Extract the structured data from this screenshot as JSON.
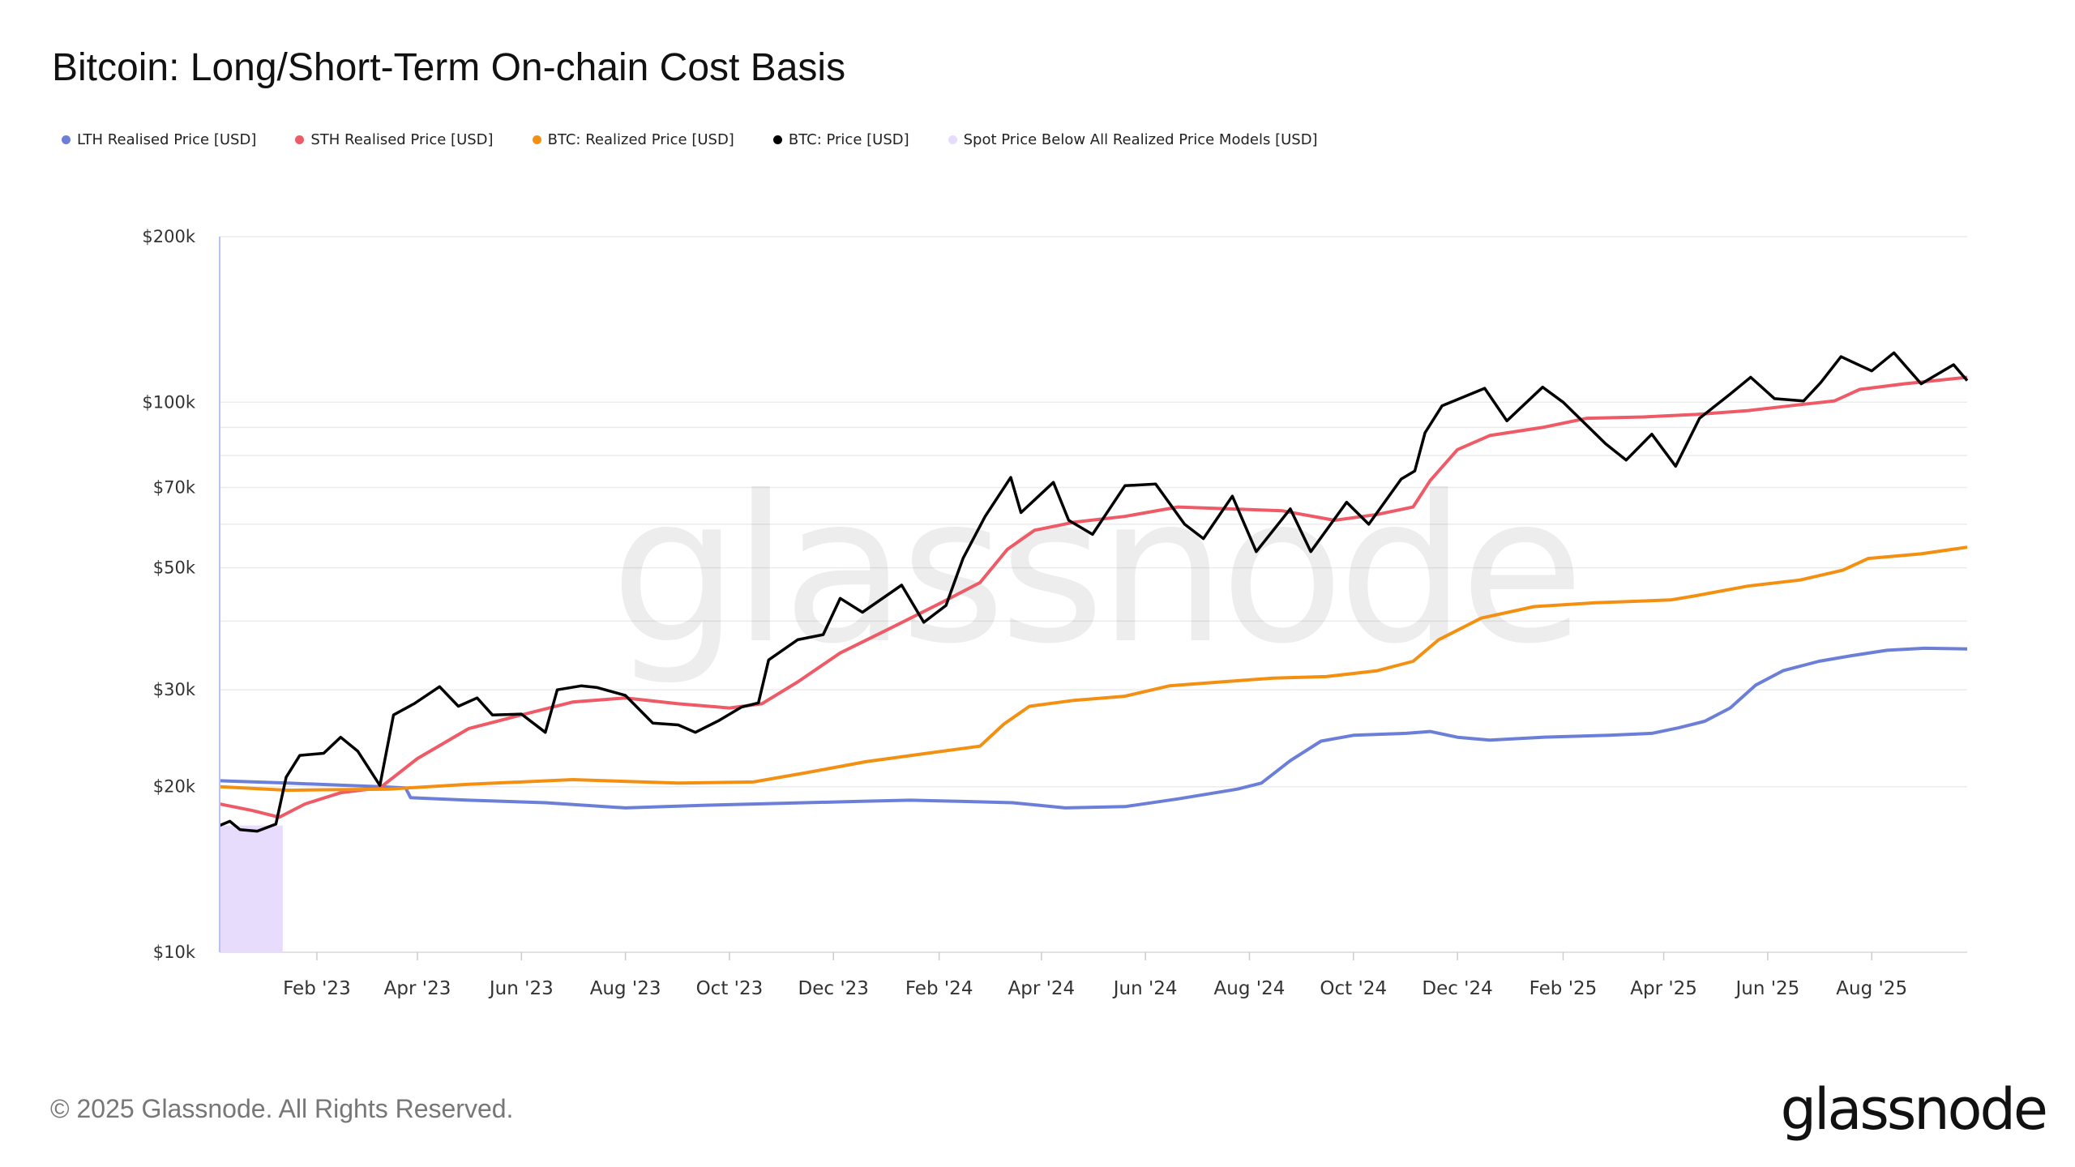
{
  "title": "Bitcoin: Long/Short-Term On-chain Cost Basis",
  "footer": "© 2025 Glassnode. All Rights Reserved.",
  "logo": "glassnode",
  "watermark": "glassnode",
  "legend": [
    {
      "label": "LTH Realised Price [USD]",
      "color": "#6b7fd9"
    },
    {
      "label": "STH Realised Price [USD]",
      "color": "#ee5a66"
    },
    {
      "label": "BTC: Realized Price [USD]",
      "color": "#f49011"
    },
    {
      "label": "BTC: Price [USD]",
      "color": "#000000"
    },
    {
      "label": "Spot Price Below All Realized Price Models [USD]",
      "color": "#e8dcfc"
    }
  ],
  "chart_data": {
    "type": "line",
    "title": "Bitcoin: Long/Short-Term On-chain Cost Basis",
    "y_scale": "log",
    "ylim": [
      10000,
      200000
    ],
    "xlim": [
      "2022-12-06",
      "2025-09-26"
    ],
    "grid": true,
    "legend_position": "top-left",
    "y_ticks": [
      {
        "value": 200000,
        "label": "$200k"
      },
      {
        "value": 100000,
        "label": "$100k"
      },
      {
        "value": 70000,
        "label": "$70k"
      },
      {
        "value": 50000,
        "label": "$50k"
      },
      {
        "value": 30000,
        "label": "$30k"
      },
      {
        "value": 20000,
        "label": "$20k"
      },
      {
        "value": 10000,
        "label": "$10k"
      }
    ],
    "y_minor_grid": [
      90000,
      80000,
      60000,
      40000
    ],
    "x_ticks": [
      {
        "date": "2023-02-01",
        "label": "Feb '23"
      },
      {
        "date": "2023-04-01",
        "label": "Apr '23"
      },
      {
        "date": "2023-06-01",
        "label": "Jun '23"
      },
      {
        "date": "2023-08-01",
        "label": "Aug '23"
      },
      {
        "date": "2023-10-01",
        "label": "Oct '23"
      },
      {
        "date": "2023-12-01",
        "label": "Dec '23"
      },
      {
        "date": "2024-02-01",
        "label": "Feb '24"
      },
      {
        "date": "2024-04-01",
        "label": "Apr '24"
      },
      {
        "date": "2024-06-01",
        "label": "Jun '24"
      },
      {
        "date": "2024-08-01",
        "label": "Aug '24"
      },
      {
        "date": "2024-10-01",
        "label": "Oct '24"
      },
      {
        "date": "2024-12-01",
        "label": "Dec '24"
      },
      {
        "date": "2025-02-01",
        "label": "Feb '25"
      },
      {
        "date": "2025-04-01",
        "label": "Apr '25"
      },
      {
        "date": "2025-06-01",
        "label": "Jun '25"
      },
      {
        "date": "2025-08-01",
        "label": "Aug '25"
      }
    ],
    "shaded_ranges": [
      {
        "series": "Spot Price Below All Realized Price Models [USD]",
        "start": "2022-12-06",
        "end": "2023-01-12",
        "color": "#e8dcfc"
      }
    ],
    "series": [
      {
        "name": "LTH Realised Price [USD]",
        "color": "#6b7fd9",
        "points": [
          [
            "2022-12-06",
            20500
          ],
          [
            "2023-01-15",
            20300
          ],
          [
            "2023-03-10",
            20000
          ],
          [
            "2023-03-25",
            19900
          ],
          [
            "2023-03-28",
            19100
          ],
          [
            "2023-05-01",
            18900
          ],
          [
            "2023-06-15",
            18700
          ],
          [
            "2023-08-01",
            18300
          ],
          [
            "2023-09-15",
            18500
          ],
          [
            "2023-10-15",
            18600
          ],
          [
            "2023-12-15",
            18800
          ],
          [
            "2024-01-15",
            18900
          ],
          [
            "2024-02-15",
            18800
          ],
          [
            "2024-03-15",
            18700
          ],
          [
            "2024-04-15",
            18300
          ],
          [
            "2024-05-20",
            18400
          ],
          [
            "2024-06-20",
            19000
          ],
          [
            "2024-07-25",
            19800
          ],
          [
            "2024-08-08",
            20300
          ],
          [
            "2024-08-25",
            22300
          ],
          [
            "2024-09-12",
            24200
          ],
          [
            "2024-10-01",
            24800
          ],
          [
            "2024-11-01",
            25000
          ],
          [
            "2024-11-15",
            25200
          ],
          [
            "2024-12-01",
            24600
          ],
          [
            "2024-12-20",
            24300
          ],
          [
            "2025-01-20",
            24600
          ],
          [
            "2025-02-28",
            24800
          ],
          [
            "2025-03-25",
            25000
          ],
          [
            "2025-04-10",
            25600
          ],
          [
            "2025-04-25",
            26300
          ],
          [
            "2025-05-10",
            27800
          ],
          [
            "2025-05-25",
            30600
          ],
          [
            "2025-06-10",
            32500
          ],
          [
            "2025-07-01",
            33800
          ],
          [
            "2025-07-20",
            34600
          ],
          [
            "2025-08-10",
            35400
          ],
          [
            "2025-09-01",
            35700
          ],
          [
            "2025-09-26",
            35600
          ]
        ]
      },
      {
        "name": "STH Realised Price [USD]",
        "color": "#ee5a66",
        "points": [
          [
            "2022-12-06",
            18600
          ],
          [
            "2022-12-25",
            18100
          ],
          [
            "2023-01-10",
            17600
          ],
          [
            "2023-01-25",
            18600
          ],
          [
            "2023-02-15",
            19500
          ],
          [
            "2023-03-10",
            19900
          ],
          [
            "2023-04-01",
            22500
          ],
          [
            "2023-05-01",
            25500
          ],
          [
            "2023-06-01",
            27000
          ],
          [
            "2023-07-01",
            28500
          ],
          [
            "2023-08-01",
            29000
          ],
          [
            "2023-09-01",
            28300
          ],
          [
            "2023-10-01",
            27800
          ],
          [
            "2023-10-20",
            28300
          ],
          [
            "2023-11-10",
            31000
          ],
          [
            "2023-12-05",
            35000
          ],
          [
            "2024-01-01",
            38500
          ],
          [
            "2024-02-01",
            43000
          ],
          [
            "2024-02-25",
            47000
          ],
          [
            "2024-03-12",
            54000
          ],
          [
            "2024-03-28",
            58500
          ],
          [
            "2024-04-20",
            60500
          ],
          [
            "2024-05-20",
            62000
          ],
          [
            "2024-06-20",
            64500
          ],
          [
            "2024-07-20",
            64000
          ],
          [
            "2024-08-20",
            63500
          ],
          [
            "2024-09-20",
            61000
          ],
          [
            "2024-10-15",
            62500
          ],
          [
            "2024-11-05",
            64500
          ],
          [
            "2024-11-15",
            72000
          ],
          [
            "2024-12-01",
            82000
          ],
          [
            "2024-12-20",
            87000
          ],
          [
            "2025-01-20",
            90000
          ],
          [
            "2025-02-15",
            93500
          ],
          [
            "2025-03-20",
            94000
          ],
          [
            "2025-04-20",
            95000
          ],
          [
            "2025-05-20",
            96500
          ],
          [
            "2025-06-20",
            99000
          ],
          [
            "2025-07-10",
            100500
          ],
          [
            "2025-07-25",
            105500
          ],
          [
            "2025-08-20",
            108000
          ],
          [
            "2025-09-26",
            111000
          ]
        ]
      },
      {
        "name": "BTC: Realized Price [USD]",
        "color": "#f49011",
        "points": [
          [
            "2022-12-06",
            20000
          ],
          [
            "2023-01-15",
            19700
          ],
          [
            "2023-03-15",
            19800
          ],
          [
            "2023-05-01",
            20200
          ],
          [
            "2023-07-01",
            20600
          ],
          [
            "2023-09-01",
            20300
          ],
          [
            "2023-10-15",
            20400
          ],
          [
            "2023-11-15",
            21200
          ],
          [
            "2023-12-20",
            22200
          ],
          [
            "2024-01-25",
            23000
          ],
          [
            "2024-02-25",
            23700
          ],
          [
            "2024-03-10",
            26000
          ],
          [
            "2024-03-25",
            28000
          ],
          [
            "2024-04-20",
            28700
          ],
          [
            "2024-05-20",
            29200
          ],
          [
            "2024-06-15",
            30500
          ],
          [
            "2024-07-15",
            31000
          ],
          [
            "2024-08-15",
            31500
          ],
          [
            "2024-09-15",
            31700
          ],
          [
            "2024-10-15",
            32500
          ],
          [
            "2024-11-05",
            33800
          ],
          [
            "2024-11-20",
            37000
          ],
          [
            "2024-12-15",
            40500
          ],
          [
            "2025-01-15",
            42500
          ],
          [
            "2025-02-20",
            43200
          ],
          [
            "2025-04-05",
            43700
          ],
          [
            "2025-04-20",
            44500
          ],
          [
            "2025-05-20",
            46300
          ],
          [
            "2025-06-20",
            47500
          ],
          [
            "2025-07-15",
            49500
          ],
          [
            "2025-07-30",
            52000
          ],
          [
            "2025-08-30",
            53000
          ],
          [
            "2025-09-26",
            54500
          ]
        ]
      },
      {
        "name": "BTC: Price [USD]",
        "color": "#000000",
        "points": [
          [
            "2022-12-06",
            17000
          ],
          [
            "2022-12-12",
            17300
          ],
          [
            "2022-12-18",
            16700
          ],
          [
            "2022-12-28",
            16600
          ],
          [
            "2023-01-08",
            17100
          ],
          [
            "2023-01-14",
            20800
          ],
          [
            "2023-01-22",
            22800
          ],
          [
            "2023-02-05",
            23000
          ],
          [
            "2023-02-15",
            24600
          ],
          [
            "2023-02-25",
            23200
          ],
          [
            "2023-03-10",
            20100
          ],
          [
            "2023-03-18",
            27000
          ],
          [
            "2023-03-30",
            28300
          ],
          [
            "2023-04-14",
            30400
          ],
          [
            "2023-04-25",
            28000
          ],
          [
            "2023-05-06",
            29000
          ],
          [
            "2023-05-15",
            27000
          ],
          [
            "2023-06-01",
            27100
          ],
          [
            "2023-06-15",
            25100
          ],
          [
            "2023-06-22",
            30000
          ],
          [
            "2023-07-06",
            30500
          ],
          [
            "2023-07-15",
            30300
          ],
          [
            "2023-08-01",
            29300
          ],
          [
            "2023-08-17",
            26100
          ],
          [
            "2023-09-01",
            25900
          ],
          [
            "2023-09-11",
            25100
          ],
          [
            "2023-09-25",
            26400
          ],
          [
            "2023-10-08",
            27900
          ],
          [
            "2023-10-18",
            28400
          ],
          [
            "2023-10-24",
            34000
          ],
          [
            "2023-11-10",
            37000
          ],
          [
            "2023-11-25",
            37800
          ],
          [
            "2023-12-05",
            44000
          ],
          [
            "2023-12-18",
            41500
          ],
          [
            "2024-01-10",
            46500
          ],
          [
            "2024-01-23",
            39800
          ],
          [
            "2024-02-05",
            42700
          ],
          [
            "2024-02-15",
            52000
          ],
          [
            "2024-02-28",
            62000
          ],
          [
            "2024-03-14",
            73000
          ],
          [
            "2024-03-20",
            63000
          ],
          [
            "2024-04-08",
            71500
          ],
          [
            "2024-04-17",
            61000
          ],
          [
            "2024-05-01",
            57500
          ],
          [
            "2024-05-20",
            70500
          ],
          [
            "2024-06-07",
            71000
          ],
          [
            "2024-06-24",
            60000
          ],
          [
            "2024-07-05",
            56500
          ],
          [
            "2024-07-22",
            67500
          ],
          [
            "2024-08-05",
            53500
          ],
          [
            "2024-08-25",
            64000
          ],
          [
            "2024-09-06",
            53500
          ],
          [
            "2024-09-27",
            65800
          ],
          [
            "2024-10-10",
            60000
          ],
          [
            "2024-10-29",
            72500
          ],
          [
            "2024-11-06",
            75000
          ],
          [
            "2024-11-12",
            88000
          ],
          [
            "2024-11-22",
            98500
          ],
          [
            "2024-12-17",
            106000
          ],
          [
            "2024-12-30",
            92500
          ],
          [
            "2025-01-20",
            106500
          ],
          [
            "2025-02-01",
            100000
          ],
          [
            "2025-02-26",
            84000
          ],
          [
            "2025-03-10",
            78500
          ],
          [
            "2025-03-25",
            87500
          ],
          [
            "2025-04-08",
            76500
          ],
          [
            "2025-04-22",
            93500
          ],
          [
            "2025-05-10",
            103500
          ],
          [
            "2025-05-22",
            111000
          ],
          [
            "2025-06-05",
            101500
          ],
          [
            "2025-06-22",
            100500
          ],
          [
            "2025-07-02",
            108500
          ],
          [
            "2025-07-14",
            121000
          ],
          [
            "2025-08-01",
            114000
          ],
          [
            "2025-08-14",
            123000
          ],
          [
            "2025-08-30",
            108000
          ],
          [
            "2025-09-18",
            117000
          ],
          [
            "2025-09-26",
            109500
          ]
        ]
      }
    ]
  }
}
